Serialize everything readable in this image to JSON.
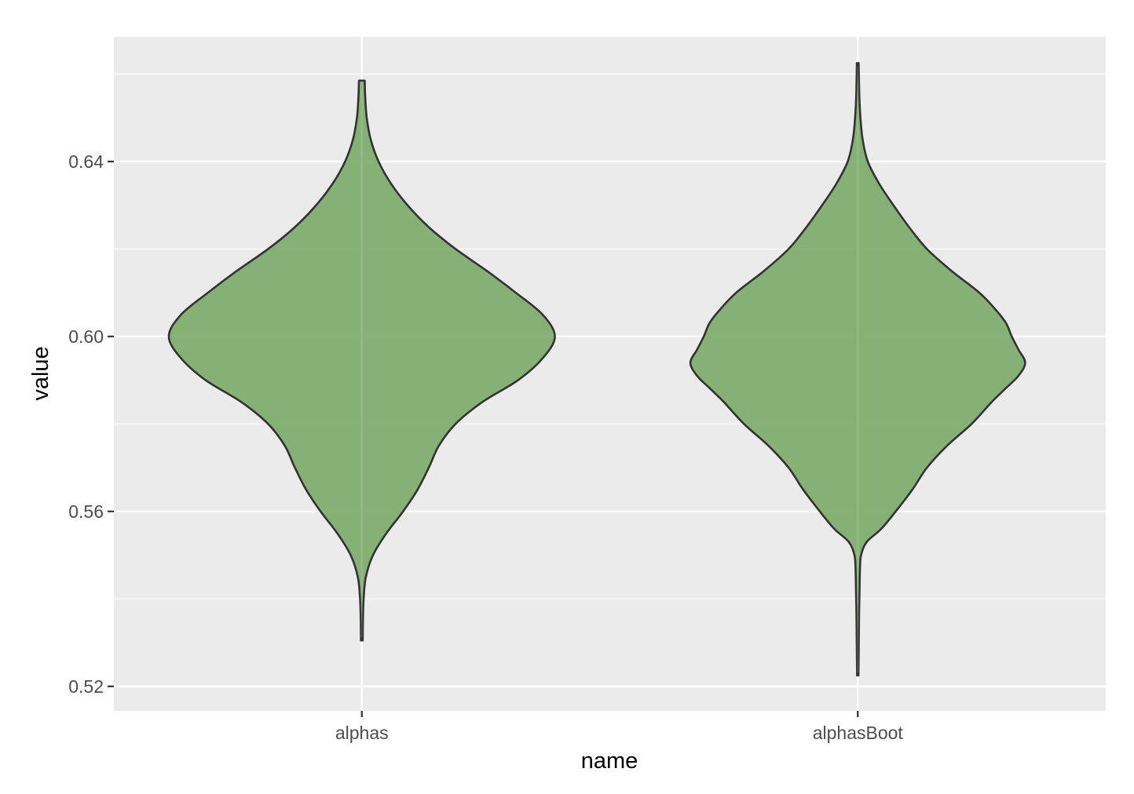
{
  "chart_data": {
    "type": "violin",
    "title": "",
    "xlabel": "name",
    "ylabel": "value",
    "categories": [
      "alphas",
      "alphasBoot"
    ],
    "ylim": [
      0.5144,
      0.6685
    ],
    "y_ticks": [
      0.52,
      0.56,
      0.6,
      0.64
    ],
    "y_tick_labels": [
      "0.52",
      "0.56",
      "0.60",
      "0.64"
    ],
    "y_minor_ticks": [
      0.54,
      0.58,
      0.62,
      0.66
    ],
    "grid": true,
    "fill_color": "#7fae6f",
    "outline_color": "#333333",
    "panel_background": "#ebebeb",
    "series": [
      {
        "name": "alphas",
        "range": [
          0.5305,
          0.6585
        ],
        "density_profile": [
          [
            0.5305,
            0.004
          ],
          [
            0.535,
            0.005
          ],
          [
            0.54,
            0.008
          ],
          [
            0.545,
            0.018
          ],
          [
            0.55,
            0.05
          ],
          [
            0.555,
            0.11
          ],
          [
            0.56,
            0.185
          ],
          [
            0.565,
            0.25
          ],
          [
            0.57,
            0.3
          ],
          [
            0.575,
            0.345
          ],
          [
            0.58,
            0.42
          ],
          [
            0.585,
            0.54
          ],
          [
            0.59,
            0.7
          ],
          [
            0.595,
            0.81
          ],
          [
            0.6,
            0.865
          ],
          [
            0.605,
            0.81
          ],
          [
            0.61,
            0.69
          ],
          [
            0.615,
            0.56
          ],
          [
            0.62,
            0.42
          ],
          [
            0.625,
            0.3
          ],
          [
            0.63,
            0.205
          ],
          [
            0.635,
            0.13
          ],
          [
            0.64,
            0.075
          ],
          [
            0.645,
            0.04
          ],
          [
            0.65,
            0.022
          ],
          [
            0.655,
            0.015
          ],
          [
            0.6585,
            0.013
          ]
        ]
      },
      {
        "name": "alphasBoot",
        "range": [
          0.5225,
          0.6625
        ],
        "density_profile": [
          [
            0.5225,
            0.003
          ],
          [
            0.527,
            0.004
          ],
          [
            0.532,
            0.005
          ],
          [
            0.537,
            0.006
          ],
          [
            0.542,
            0.008
          ],
          [
            0.547,
            0.01
          ],
          [
            0.55,
            0.015
          ],
          [
            0.553,
            0.04
          ],
          [
            0.556,
            0.105
          ],
          [
            0.56,
            0.17
          ],
          [
            0.565,
            0.245
          ],
          [
            0.57,
            0.31
          ],
          [
            0.575,
            0.4
          ],
          [
            0.58,
            0.51
          ],
          [
            0.585,
            0.6
          ],
          [
            0.588,
            0.66
          ],
          [
            0.591,
            0.72
          ],
          [
            0.594,
            0.75
          ],
          [
            0.597,
            0.72
          ],
          [
            0.6,
            0.69
          ],
          [
            0.603,
            0.665
          ],
          [
            0.606,
            0.62
          ],
          [
            0.61,
            0.545
          ],
          [
            0.615,
            0.42
          ],
          [
            0.62,
            0.31
          ],
          [
            0.625,
            0.23
          ],
          [
            0.63,
            0.16
          ],
          [
            0.635,
            0.095
          ],
          [
            0.64,
            0.045
          ],
          [
            0.645,
            0.022
          ],
          [
            0.65,
            0.012
          ],
          [
            0.655,
            0.007
          ],
          [
            0.6625,
            0.004
          ]
        ]
      }
    ]
  }
}
